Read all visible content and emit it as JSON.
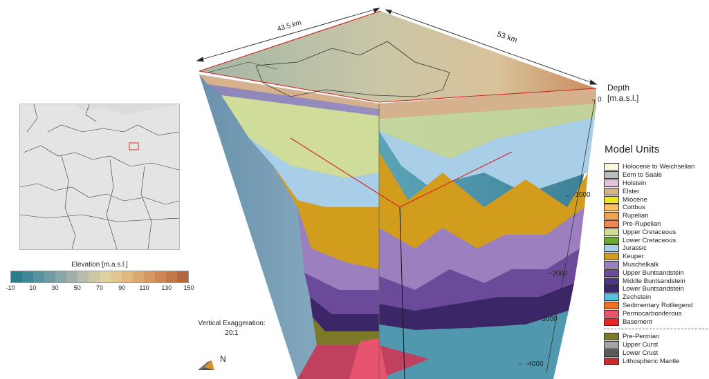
{
  "dimensions": {
    "width_label": "43.5 km",
    "length_label": "53 km"
  },
  "elevation_bar": {
    "title": "Elevation [m.a.s.l.]",
    "ticks": [
      "-10",
      "10",
      "30",
      "50",
      "70",
      "90",
      "110",
      "130",
      "150"
    ],
    "colors": [
      "#2e7b8e",
      "#3f8796",
      "#56929e",
      "#6e9ba4",
      "#87a6a6",
      "#a0b0a8",
      "#b8bcaa",
      "#cfc8a6",
      "#dfd0a0",
      "#e2c691",
      "#e0b880",
      "#dba870",
      "#d69861",
      "#cd8753",
      "#c27748",
      "#b5683f"
    ]
  },
  "depth": {
    "title_line1": "Depth",
    "title_line2": "[m.a.s.l.]",
    "ticks": [
      "0",
      "-1000",
      "-2000",
      "-3000",
      "-4000"
    ]
  },
  "vertical_exaggeration": {
    "line1": "Vertical Exaggeration:",
    "line2": "20:1"
  },
  "north_label": "N",
  "legend": {
    "title": "Model Units",
    "units": [
      {
        "label": "Holocene  to  Weichselian",
        "color": "#fbf6dc"
      },
      {
        "label": "Eem  to  Saale",
        "color": "#bcbcbc"
      },
      {
        "label": "Holstein",
        "color": "#e4c0dc"
      },
      {
        "label": "Elster",
        "color": "#d6b18e"
      },
      {
        "label": "Miocene",
        "color": "#f2e41c"
      },
      {
        "label": "Cottbus",
        "color": "#f6c063"
      },
      {
        "label": "Rupelian",
        "color": "#f2a14e"
      },
      {
        "label": "Pre-Rupelian",
        "color": "#ee8850"
      },
      {
        "label": "Upper  Cretaceous",
        "color": "#cfdc9a"
      },
      {
        "label": "Lower  Cretaceous",
        "color": "#6aa832"
      },
      {
        "label": "Jurassic",
        "color": "#a9cfe8"
      },
      {
        "label": "Keuper",
        "color": "#d29d1c"
      },
      {
        "label": "Muschelkalk",
        "color": "#9c7fbe"
      },
      {
        "label": "Upper  Buntsandstein",
        "color": "#6c4a9a"
      },
      {
        "label": "Middle  Buntsandstein",
        "color": "#4f3682"
      },
      {
        "label": "Lower  Buntsandstein",
        "color": "#3b2768"
      },
      {
        "label": "Zechstein",
        "color": "#5ac0dc"
      },
      {
        "label": "Sedimentary  Rotliegend",
        "color": "#ee7024"
      },
      {
        "label": "Permocarboniferous",
        "color": "#e8546e"
      },
      {
        "label": "Basement",
        "color": "#e4262a"
      }
    ],
    "deep_units": [
      {
        "label": "Pre-Permian",
        "color": "#7c7a28"
      },
      {
        "label": "Upper Curst",
        "color": "#a4a4a4"
      },
      {
        "label": "Lower Crust",
        "color": "#5a5a5a"
      },
      {
        "label": "Lithospheric Mantle",
        "color": "#d02828"
      }
    ]
  }
}
